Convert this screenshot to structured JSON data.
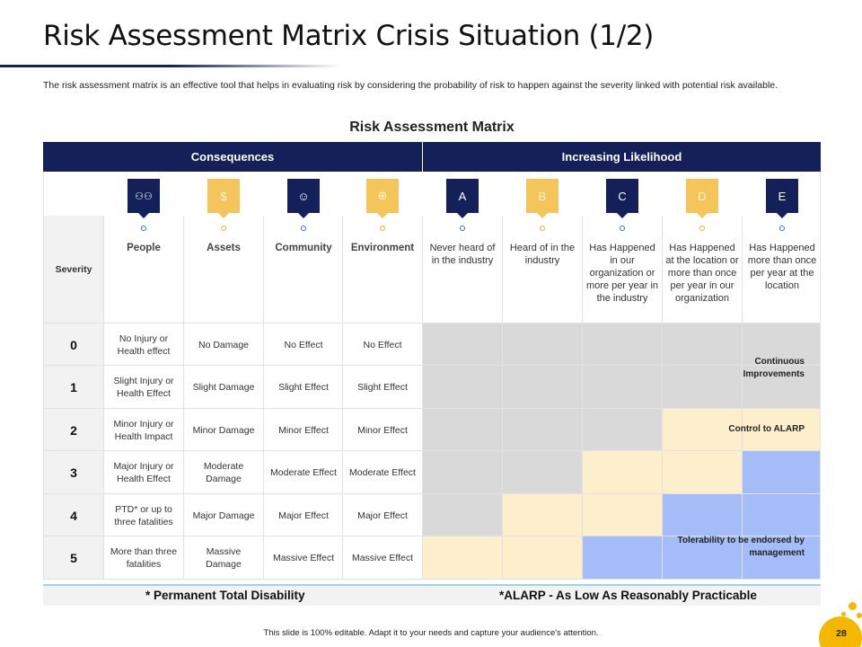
{
  "title": "Risk Assessment Matrix Crisis Situation (1/2)",
  "description": "The risk assessment matrix is an effective tool that helps in evaluating risk by considering the probability of risk to happen against the severity linked with potential risk available.",
  "matrix_title": "Risk Assessment Matrix",
  "header": {
    "consequences": "Consequences",
    "likelihood": "Increasing Likelihood"
  },
  "severity_label": "Severity",
  "consequence_columns": [
    {
      "label": "People",
      "icon": "people-icon"
    },
    {
      "label": "Assets",
      "icon": "money-bag-icon"
    },
    {
      "label": "Community",
      "icon": "community-icon"
    },
    {
      "label": "Environment",
      "icon": "globe-hand-icon"
    }
  ],
  "likelihood_columns": [
    {
      "letter": "A",
      "label": "Never heard of in the industry"
    },
    {
      "letter": "B",
      "label": "Heard of in the industry"
    },
    {
      "letter": "C",
      "label": "Has Happened in our organization or more per year in the industry"
    },
    {
      "letter": "D",
      "label": "Has Happened at the location or more than once per year in our organization"
    },
    {
      "letter": "E",
      "label": "Has Happened more than once per year at the location"
    }
  ],
  "rows": [
    {
      "severity": "0",
      "people": "No Injury or Health effect",
      "assets": "No Damage",
      "community": "No Effect",
      "environment": "No Effect"
    },
    {
      "severity": "1",
      "people": "Slight Injury or Health Effect",
      "assets": "Slight Damage",
      "community": "Slight Effect",
      "environment": "Slight Effect"
    },
    {
      "severity": "2",
      "people": "Minor Injury or Health Impact",
      "assets": "Minor Damage",
      "community": "Minor Effect",
      "environment": "Minor Effect"
    },
    {
      "severity": "3",
      "people": "Major Injury or Health Effect",
      "assets": "Moderate Damage",
      "community": "Moderate Effect",
      "environment": "Moderate Effect"
    },
    {
      "severity": "4",
      "people": "PTD* or up to three fatalities",
      "assets": "Major Damage",
      "community": "Major Effect",
      "environment": "Major Effect"
    },
    {
      "severity": "5",
      "people": "More than three fatalities",
      "assets": "Massive Damage",
      "community": "Massive Effect",
      "environment": "Massive Effect"
    }
  ],
  "zone_colors": {
    "gray": "#d9d9d9",
    "cream": "#fdefcc",
    "blue": "#a4bdf8"
  },
  "zone_grid": [
    [
      "gray",
      "gray",
      "gray",
      "gray",
      "gray"
    ],
    [
      "gray",
      "gray",
      "gray",
      "gray",
      "gray"
    ],
    [
      "gray",
      "gray",
      "gray",
      "cream",
      "cream"
    ],
    [
      "gray",
      "gray",
      "cream",
      "cream",
      "blue"
    ],
    [
      "gray",
      "cream",
      "cream",
      "blue",
      "blue"
    ],
    [
      "cream",
      "cream",
      "blue",
      "blue",
      "blue"
    ]
  ],
  "zones": {
    "continuous": "Continuous Improvements",
    "alarp": "Control to ALARP",
    "tolerability": "Tolerability to be endorsed by management"
  },
  "footnotes": {
    "ptd": "* Permanent Total Disability",
    "alarp": "*ALARP - As Low As Reasonably Practicable"
  },
  "bottom_note": "This slide is 100% editable. Adapt it to your needs and capture your audience's attention.",
  "page_number": "28"
}
